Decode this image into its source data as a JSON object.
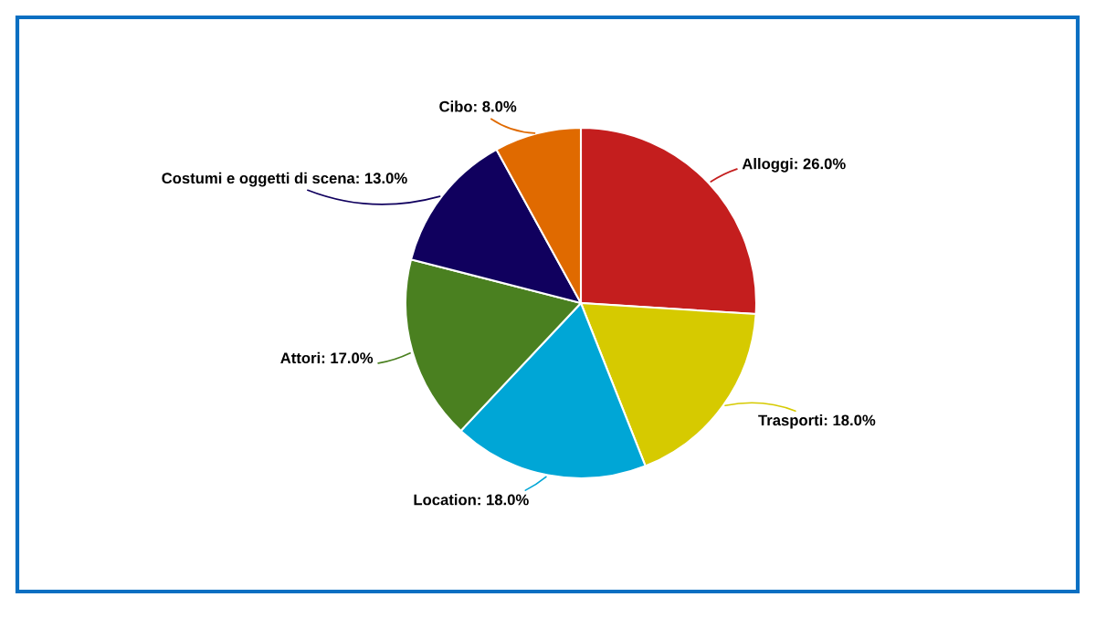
{
  "chart_data": {
    "type": "pie",
    "categories": [
      "Alloggi",
      "Trasporti",
      "Location",
      "Attori",
      "Costumi e oggetti di scena",
      "Cibo"
    ],
    "values": [
      26.0,
      18.0,
      18.0,
      17.0,
      13.0,
      8.0
    ],
    "value_labels": [
      "26.0%",
      "18.0%",
      "18.0%",
      "17.0%",
      "13.0%",
      "8.0%"
    ],
    "colors": [
      "#c41e1e",
      "#d6ca00",
      "#00a6d6",
      "#4a8020",
      "#10005e",
      "#e06a00"
    ],
    "legend": false
  }
}
